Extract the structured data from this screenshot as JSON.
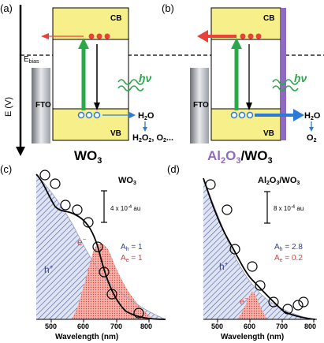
{
  "panels": {
    "a": {
      "tag": "(a)",
      "cb": "CB",
      "vb": "VB",
      "ebias": "E",
      "ebias_sub": "bias",
      "fto": "FTO",
      "hv": "hν",
      "h2o": "H",
      "h2o_sub": "2",
      "h2o_end": "O",
      "prod1": "H",
      "prod1_sub": "2",
      "prod1_mid": "O",
      "prod1_sub2": "2",
      "prod1_end": ", O",
      "prod1_sub3": "2",
      "prod1_tail": "...",
      "yaxis": "E (V)",
      "name": "WO",
      "name_sub": "3"
    },
    "b": {
      "tag": "(b)",
      "cb": "CB",
      "vb": "VB",
      "fto": "FTO",
      "hv": "hν",
      "h2o": "H",
      "h2o_sub": "2",
      "h2o_end": "O",
      "prod": "O",
      "prod_sub": "2",
      "name_a": "Al",
      "name_a_sub1": "2",
      "name_a_mid": "O",
      "name_a_sub2": "3",
      "name_b": "/WO",
      "name_b_sub": "3"
    },
    "c": {
      "tag": "(c)",
      "title": "WO",
      "title_sub": "3",
      "scale": "4 x 10",
      "scale_exp": "-4",
      "scale_unit": " au",
      "ah": "A",
      "ah_sub": "h",
      "ah_val": " = 1",
      "ae": "A",
      "ae_sub": "e",
      "ae_val": " = 1",
      "hplus": "h",
      "hplus_sup": "+",
      "eminus": "e",
      "eminus_sup": "−",
      "xlabel": "Wavelength (nm)",
      "xticks": [
        "500",
        "600",
        "700",
        "800"
      ]
    },
    "d": {
      "tag": "(d)",
      "title_a": "Al",
      "title_sub1": "2",
      "title_mid": "O",
      "title_sub2": "3",
      "title_b": "/WO",
      "title_sub3": "3",
      "scale": "8 x 10",
      "scale_exp": "-4",
      "scale_unit": " au",
      "ah": "A",
      "ah_sub": "h",
      "ah_val": " = 2.8",
      "ae": "A",
      "ae_sub": "e",
      "ae_val": " = 0.2",
      "hplus": "h",
      "hplus_sup": "+",
      "eminus": "e",
      "eminus_sup": "−",
      "xlabel": "Wavelength (nm)",
      "xticks": [
        "500",
        "600",
        "700",
        "800"
      ]
    }
  },
  "colors": {
    "band_fill": "#f7f08a",
    "green": "#2aa84a",
    "red": "#e8423a",
    "blue": "#2b7bd6",
    "purple": "#8e6bc0",
    "hole_blue": "#2e3e9a",
    "elec_red": "#d9423a"
  }
}
